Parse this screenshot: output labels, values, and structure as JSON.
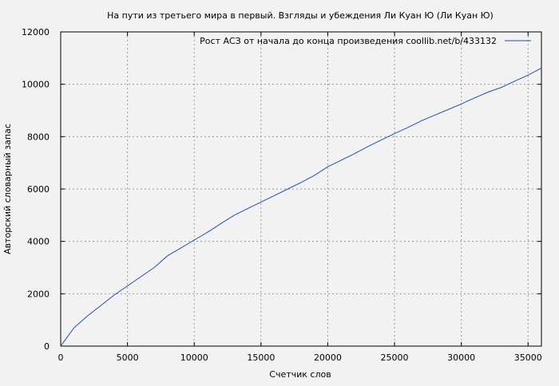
{
  "chart_data": {
    "type": "line",
    "title": "На пути из третьего мира в первый. Взгляды и убеждения Ли Куан Ю (Ли Куан Ю)",
    "xlabel": "Счетчик слов",
    "ylabel": "Авторский словарный запас",
    "xlim": [
      0,
      36000
    ],
    "ylim": [
      0,
      12000
    ],
    "xticks": [
      0,
      5000,
      10000,
      15000,
      20000,
      25000,
      30000,
      35000
    ],
    "yticks": [
      0,
      2000,
      4000,
      6000,
      8000,
      10000,
      12000
    ],
    "grid": true,
    "legend_position": "top-right",
    "series": [
      {
        "name": "Рост АСЗ от начала до конца произведения  coollib.net/b/433132",
        "color": "#1f4fb5",
        "x": [
          0,
          1000,
          2000,
          3000,
          4000,
          5000,
          6000,
          7000,
          8000,
          9000,
          10000,
          11000,
          12000,
          13000,
          14000,
          15000,
          16000,
          17000,
          18000,
          19000,
          20000,
          21000,
          22000,
          23000,
          24000,
          25000,
          26000,
          27000,
          28000,
          29000,
          30000,
          31000,
          32000,
          33000,
          34000,
          35000,
          36000
        ],
        "y": [
          0,
          700,
          1150,
          1550,
          1950,
          2300,
          2650,
          3000,
          3450,
          3750,
          4050,
          4350,
          4680,
          5000,
          5250,
          5500,
          5750,
          6000,
          6250,
          6520,
          6850,
          7100,
          7350,
          7620,
          7870,
          8120,
          8350,
          8600,
          8820,
          9030,
          9250,
          9480,
          9700,
          9880,
          10120,
          10350,
          10620
        ]
      }
    ]
  }
}
